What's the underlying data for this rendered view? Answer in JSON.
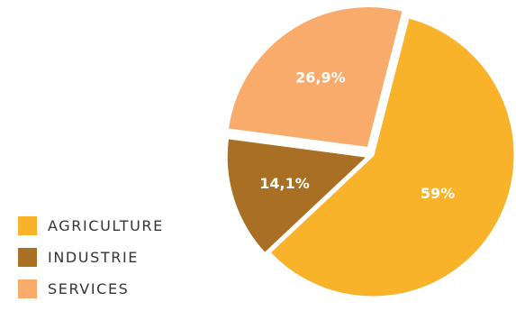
{
  "chart_data": {
    "type": "pie",
    "title": "",
    "slices": [
      {
        "label": "AGRICULTURE",
        "value": 59,
        "display": "59%",
        "color": "#F9B32B"
      },
      {
        "label": "INDUSTRIE",
        "value": 14.1,
        "display": "14,1%",
        "color": "#A86F25"
      },
      {
        "label": "SERVICES",
        "value": 26.9,
        "display": "26,9%",
        "color": "#F9AB6B"
      }
    ],
    "legend_position": "bottom-left",
    "exploded": true
  }
}
